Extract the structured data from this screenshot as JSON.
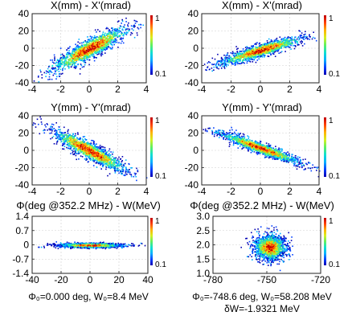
{
  "colors": {
    "colormap": [
      "#0000b4",
      "#0040ff",
      "#00b0ff",
      "#10e0d0",
      "#60f060",
      "#d8f020",
      "#ffb000",
      "#ff4000",
      "#c00000"
    ],
    "frame": "#222222",
    "grid": "#cfcfcf"
  },
  "chart_data": [
    {
      "type": "scatter",
      "title": "X(mm) - X'(mrad)",
      "xlim": [
        -4,
        4
      ],
      "ylim": [
        -40,
        40
      ],
      "xticks": [
        "-4",
        "-2",
        "0",
        "2",
        "4"
      ],
      "yticks": [
        "40",
        "20",
        "0",
        "-20",
        "-40"
      ],
      "colorbar": {
        "max_label": "1",
        "min_label": "0.1"
      },
      "distribution": {
        "center": [
          0,
          0
        ],
        "slope": 8.5,
        "major_sigma": 1.35,
        "minor_sigma": 6,
        "points": 1400
      },
      "grid": true
    },
    {
      "type": "scatter",
      "title": "X(mm) - X'(mrad)",
      "xlim": [
        -4,
        4
      ],
      "ylim": [
        -40,
        40
      ],
      "xticks": [
        "-4",
        "-2",
        "0",
        "2",
        "4"
      ],
      "yticks": [
        "40",
        "20",
        "0",
        "-20",
        "-40"
      ],
      "colorbar": {
        "max_label": "1",
        "min_label": "0.1"
      },
      "distribution": {
        "center": [
          0,
          -2
        ],
        "slope": 5,
        "major_sigma": 1.45,
        "minor_sigma": 3.6,
        "points": 1400
      },
      "grid": true
    },
    {
      "type": "scatter",
      "title": "Y(mm) - Y'(mrad)",
      "xlim": [
        -4,
        4
      ],
      "ylim": [
        -40,
        40
      ],
      "xticks": [
        "-4",
        "-2",
        "0",
        "2",
        "4"
      ],
      "yticks": [
        "40",
        "20",
        "0",
        "-20",
        "-40"
      ],
      "colorbar": {
        "max_label": "1",
        "min_label": "0.1"
      },
      "distribution": {
        "center": [
          0,
          0
        ],
        "slope": -8.5,
        "major_sigma": 1.35,
        "minor_sigma": 5,
        "points": 1400
      },
      "grid": true
    },
    {
      "type": "scatter",
      "title": "Y(mm) - Y'(mrad)",
      "xlim": [
        -4,
        4
      ],
      "ylim": [
        -40,
        40
      ],
      "xticks": [
        "-4",
        "-2",
        "0",
        "2",
        "4"
      ],
      "yticks": [
        "40",
        "20",
        "0",
        "-20",
        "-40"
      ],
      "colorbar": {
        "max_label": "1",
        "min_label": "0.1"
      },
      "distribution": {
        "center": [
          0,
          3
        ],
        "slope": -6,
        "major_sigma": 1.45,
        "minor_sigma": 3.2,
        "points": 1400
      },
      "grid": true
    },
    {
      "type": "scatter",
      "title": "Φ(deg @352.2 MHz) - W(MeV)",
      "xlim": [
        -40,
        40
      ],
      "ylim": [
        -1.4,
        1.4
      ],
      "xticks": [
        "-40",
        "-20",
        "0",
        "20",
        "40"
      ],
      "yticks": [
        "1.4",
        "0.7",
        "0",
        "-0.7",
        "-1.4"
      ],
      "colorbar": {
        "max_label": "1",
        "min_label": "0.1"
      },
      "distribution": {
        "center": [
          0,
          0
        ],
        "sigma_x": 11,
        "sigma_y": 0.055,
        "points": 1400
      },
      "annotation": [
        "Φ₀=0.000 deg, W₀=8.4 MeV"
      ],
      "grid": true
    },
    {
      "type": "scatter",
      "title": "Φ(deg @352.2 MHz) - W(MeV)",
      "xlim": [
        -780,
        -720
      ],
      "ylim": [
        1.0,
        3.0
      ],
      "xticks": [
        "-780",
        "-750",
        "-720"
      ],
      "xtick_values": [
        -780,
        -750,
        -720
      ],
      "yticks": [
        "3.0",
        "2.5",
        "2.0",
        "1.5",
        "1.0"
      ],
      "colorbar": {
        "max_label": "1",
        "min_label": "0.1"
      },
      "distribution": {
        "center": [
          -748.6,
          1.93
        ],
        "sigma_x": 4.3,
        "sigma_y": 0.22,
        "points": 1600
      },
      "annotation": [
        "Φ₀=-748.6 deg, W₀=58.208 MeV",
        "δW=-1.9321 MeV"
      ],
      "grid": true
    }
  ]
}
